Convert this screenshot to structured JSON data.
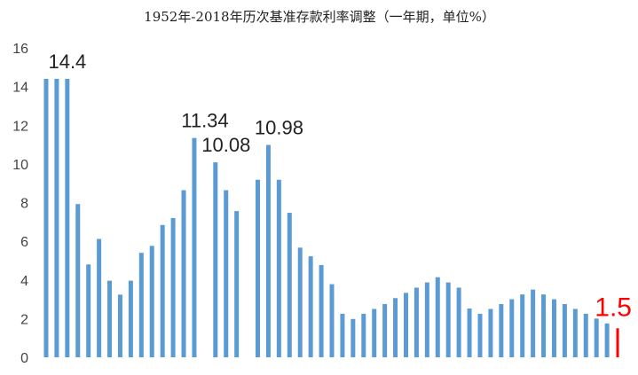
{
  "chart_data": {
    "type": "bar",
    "title": "1952年-2018年历次基准存款利率调整（一年期，单位%）",
    "xlabel": "",
    "ylabel": "",
    "ylim": [
      0,
      16
    ],
    "yticks": [
      0,
      2,
      4,
      6,
      8,
      10,
      12,
      14,
      16
    ],
    "grid": false,
    "legend": "none",
    "bar_color": "#5b9bd5",
    "highlight_color": "#ff0000",
    "values": [
      14.4,
      14.4,
      14.4,
      7.92,
      4.8,
      6.12,
      3.96,
      3.24,
      3.96,
      5.4,
      5.76,
      6.84,
      7.2,
      8.64,
      11.34,
      null,
      10.08,
      8.64,
      7.56,
      null,
      9.18,
      10.98,
      9.18,
      7.47,
      5.67,
      5.22,
      4.77,
      3.78,
      2.25,
      1.98,
      2.25,
      2.5,
      2.75,
      3.06,
      3.33,
      3.6,
      3.87,
      4.14,
      3.87,
      3.6,
      2.52,
      2.25,
      2.5,
      2.75,
      3.0,
      3.25,
      3.5,
      3.25,
      3.0,
      2.75,
      2.5,
      2.25,
      2.0,
      1.75,
      1.5
    ],
    "highlight_index": 54,
    "annotations": [
      {
        "index": 1,
        "text": "14.4"
      },
      {
        "index": 14,
        "text": "11.34"
      },
      {
        "index": 16,
        "text": "10.08"
      },
      {
        "index": 21,
        "text": "10.98"
      },
      {
        "index": 54,
        "text": "1.5"
      }
    ]
  }
}
